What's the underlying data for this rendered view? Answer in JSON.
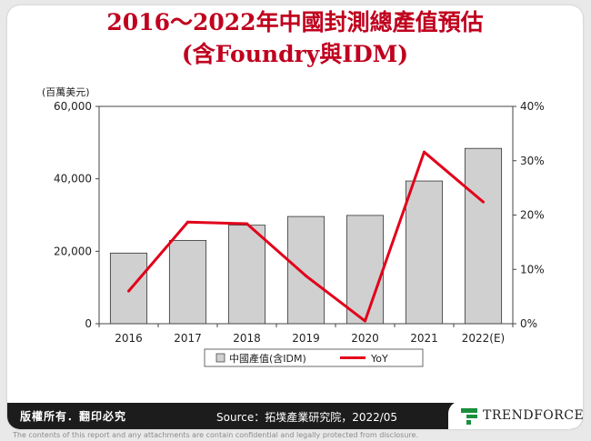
{
  "title_line1": "2016～2022年中國封測總產值預估",
  "title_line2": "(含Foundry與IDM)",
  "footer": {
    "rights": "版權所有．翻印必究",
    "source": "Source：拓墣產業研究院，2022/05",
    "brand": "TRENDFORCE"
  },
  "disclaimer": "The contents of this report and any attachments are contain confidential and legally protected from disclosure.",
  "colors": {
    "title": "#c0001e",
    "bar": "#d0d0d0",
    "line": "#e2001a"
  },
  "chart_data": {
    "type": "bar+line",
    "categories": [
      "2016",
      "2017",
      "2018",
      "2019",
      "2020",
      "2021",
      "2022(E)"
    ],
    "series": [
      {
        "name": "中國產值(含IDM)",
        "type": "bar",
        "axis": "left",
        "values": [
          19500,
          23000,
          27200,
          29600,
          29900,
          39400,
          48400
        ]
      },
      {
        "name": "YoY",
        "type": "line",
        "axis": "right",
        "values": [
          6.0,
          18.7,
          18.4,
          8.8,
          0.5,
          31.6,
          22.4
        ]
      }
    ],
    "y_left": {
      "label": "(百萬美元)",
      "min": 0,
      "max": 60000,
      "ticks": [
        "0",
        "20,000",
        "40,000",
        "60,000"
      ]
    },
    "y_right": {
      "min": 0,
      "max": 40,
      "ticks": [
        "0%",
        "10%",
        "20%",
        "30%",
        "40%"
      ]
    },
    "legend_position": "bottom",
    "grid": false
  }
}
